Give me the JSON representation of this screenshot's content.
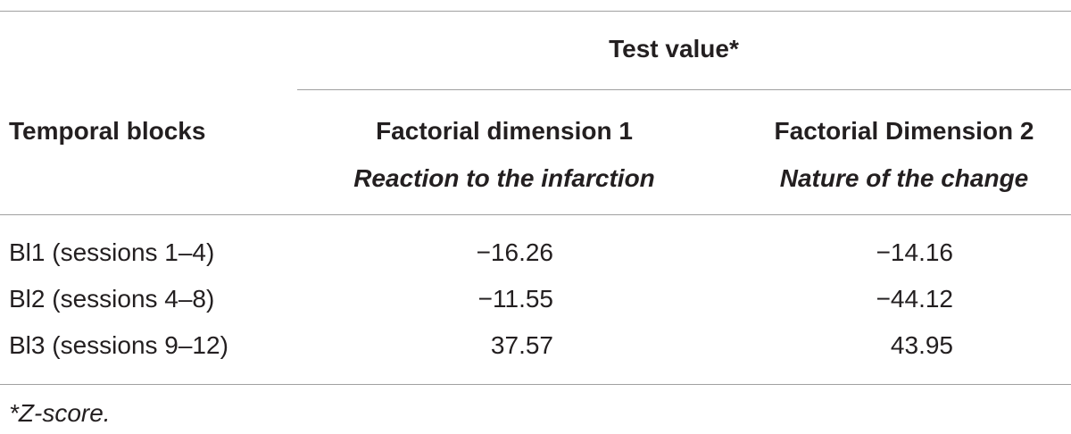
{
  "table": {
    "group_header": "Test value*",
    "columns": [
      {
        "title": "Temporal blocks"
      },
      {
        "title": "Factorial dimension 1",
        "subtitle": "Reaction to the infarction"
      },
      {
        "title": "Factorial Dimension 2",
        "subtitle": "Nature of the change"
      }
    ],
    "rows": [
      [
        "Bl1 (sessions 1–4)",
        "−16.26",
        "−14.16"
      ],
      [
        "Bl2 (sessions 4–8)",
        "−11.55",
        "−44.12"
      ],
      [
        "Bl3 (sessions 9–12)",
        "37.57",
        "43.95"
      ]
    ],
    "footnote": "*Z-score."
  }
}
